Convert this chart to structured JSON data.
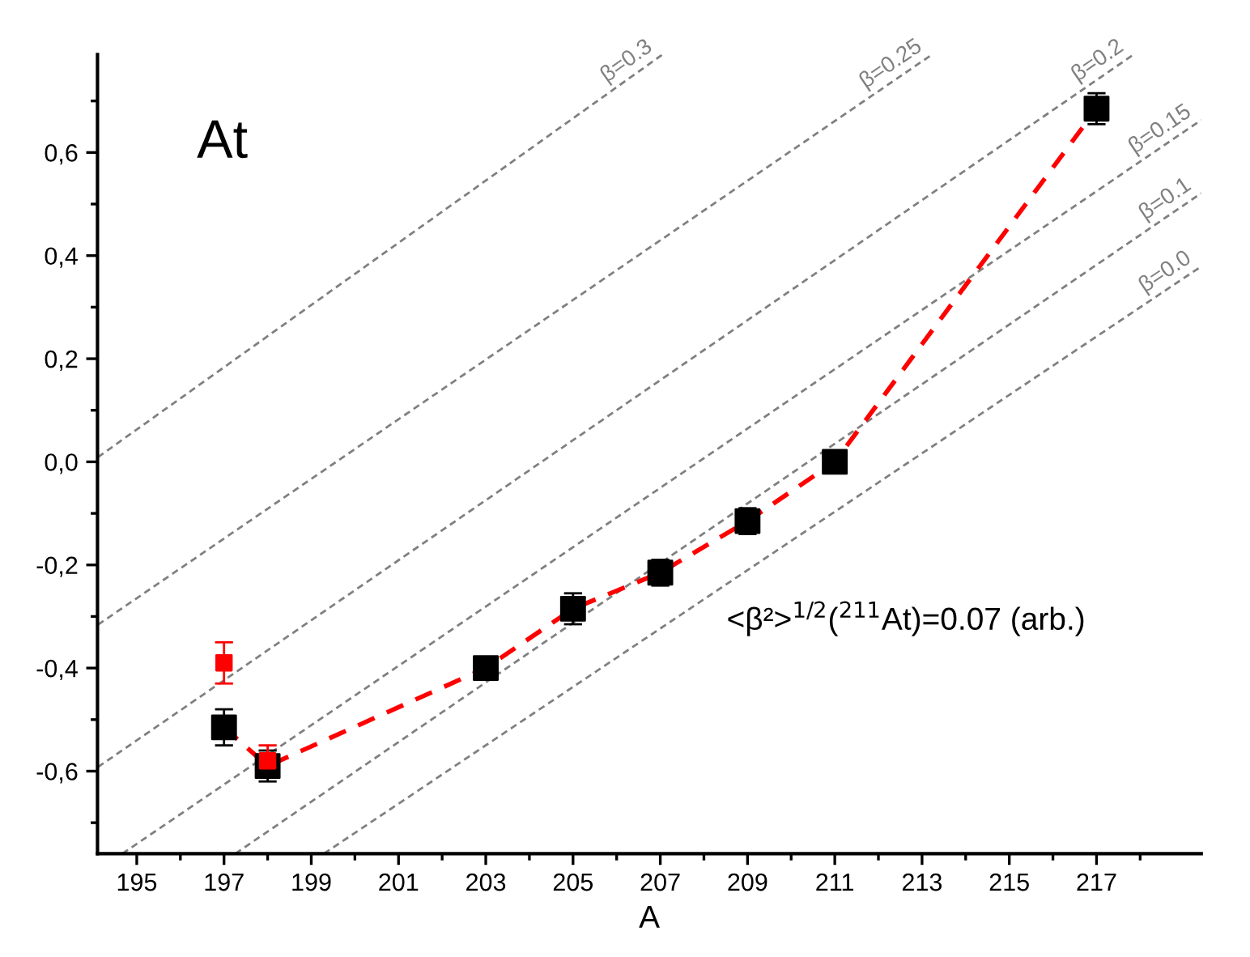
{
  "chart_data": {
    "type": "scatter",
    "title": "At",
    "xlabel": "A",
    "xlim": [
      194.1,
      219.4
    ],
    "ylim": [
      -0.76,
      0.79
    ],
    "xticks": [
      195,
      {
        "value": 196,
        "label": null
      },
      197,
      {
        "value": 198,
        "label": null
      },
      199,
      {
        "value": 200,
        "label": null
      },
      201,
      {
        "value": 202,
        "label": null
      },
      203,
      {
        "value": 204,
        "label": null
      },
      205,
      {
        "value": 206,
        "label": null
      },
      207,
      {
        "value": 208,
        "label": null
      },
      209,
      {
        "value": 210,
        "label": null
      },
      211,
      {
        "value": 212,
        "label": null
      },
      213,
      {
        "value": 214,
        "label": null
      },
      215,
      {
        "value": 216,
        "label": null
      },
      217,
      {
        "value": 218,
        "label": null
      }
    ],
    "yticks": [
      {
        "value": -0.7,
        "label": null
      },
      {
        "value": -0.6,
        "label": "-0,6"
      },
      {
        "value": -0.5,
        "label": null
      },
      {
        "value": -0.4,
        "label": "-0,4"
      },
      {
        "value": -0.3,
        "label": null
      },
      {
        "value": -0.2,
        "label": "-0,2"
      },
      {
        "value": -0.1,
        "label": null
      },
      {
        "value": 0.0,
        "label": "0,0"
      },
      {
        "value": 0.1,
        "label": null
      },
      {
        "value": 0.2,
        "label": "0,2"
      },
      {
        "value": 0.3,
        "label": null
      },
      {
        "value": 0.4,
        "label": "0,4"
      },
      {
        "value": 0.5,
        "label": null
      },
      {
        "value": 0.6,
        "label": "0,6"
      },
      {
        "value": 0.7,
        "label": null
      }
    ],
    "grid": false,
    "legend": false,
    "annotations": [
      "<β²>$^{1/2}$($^{211}$At)=0.07 (arb.)"
    ],
    "series": [
      {
        "type": "line",
        "name": "β=0.3",
        "color": "#808080",
        "line_style": "dashed",
        "marker": "none",
        "x": [
          194.11,
          207.05
        ],
        "values": [
          0.009,
          0.79
        ]
      },
      {
        "type": "line",
        "name": "β=0.25",
        "color": "#808080",
        "line_style": "dashed",
        "marker": "none",
        "x": [
          194.11,
          213.23
        ],
        "values": [
          -0.316,
          0.79
        ]
      },
      {
        "type": "line",
        "name": "β=0.2",
        "color": "#808080",
        "line_style": "dashed",
        "marker": "none",
        "x": [
          194.11,
          217.85
        ],
        "values": [
          -0.592,
          0.79
        ]
      },
      {
        "type": "line",
        "name": "β=0.15",
        "color": "#808080",
        "line_style": "dashed",
        "marker": "none",
        "x": [
          194.67,
          219.4
        ],
        "values": [
          -0.76,
          0.663
        ]
      },
      {
        "type": "line",
        "name": "β=0.1",
        "color": "#808080",
        "line_style": "dashed",
        "marker": "none",
        "x": [
          197.26,
          219.4
        ],
        "values": [
          -0.76,
          0.521
        ]
      },
      {
        "type": "line",
        "name": "β=0.0",
        "color": "#808080",
        "line_style": "dashed",
        "marker": "none",
        "x": [
          199.29,
          219.4
        ],
        "values": [
          -0.76,
          0.379
        ]
      },
      {
        "type": "line",
        "color": "#ff0000",
        "line_style": "dashed",
        "marker": "none",
        "x": [
          197,
          198,
          203,
          205,
          207,
          209,
          211,
          217
        ],
        "values": [
          -0.515,
          -0.59,
          -0.4,
          -0.285,
          -0.215,
          -0.115,
          0.0,
          0.685
        ]
      },
      {
        "color": "#000000",
        "marker": "square",
        "x": [
          197,
          198,
          203,
          205,
          207,
          209,
          211,
          217
        ],
        "values": [
          -0.515,
          -0.59,
          -0.4,
          -0.285,
          -0.215,
          -0.115,
          0.0,
          0.685
        ],
        "errors": [
          0.035,
          0.03,
          0.02,
          0.03,
          0.025,
          0.025,
          null,
          0.03
        ]
      },
      {
        "color": "#ff0000",
        "marker": "square",
        "x": [
          197,
          198
        ],
        "values": [
          -0.39,
          -0.58
        ],
        "errors": [
          0.04,
          0.03
        ]
      }
    ]
  }
}
